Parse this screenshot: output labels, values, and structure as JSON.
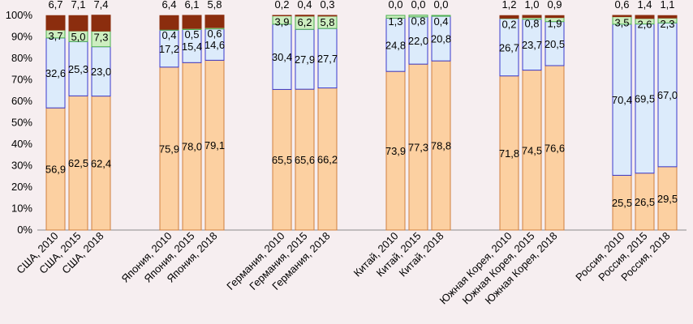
{
  "chart_data": {
    "type": "stacked-bar-100",
    "ylim": [
      0,
      100
    ],
    "yticks": [
      "0%",
      "10%",
      "20%",
      "30%",
      "40%",
      "50%",
      "60%",
      "70%",
      "80%",
      "90%",
      "100%"
    ],
    "grid": false,
    "colors": {
      "s1": "#fcd0a1",
      "s2": "#dcebfb",
      "s3": "#cdeec0",
      "s4": "#8b2d0e",
      "edge_s1": "#d08040",
      "edge_s2": "#3a3acc",
      "edge_s3": "#4caf50"
    },
    "groups": [
      {
        "name": "США",
        "bars": [
          {
            "label": "США, 2010",
            "values": [
              56.9,
              32.6,
              3.7,
              6.7
            ],
            "labels": [
              "56,9",
              "32,6",
              "3,7",
              "6,7"
            ]
          },
          {
            "label": "США, 2015",
            "values": [
              62.5,
              25.3,
              5.0,
              7.1
            ],
            "labels": [
              "62,5",
              "25,3",
              "5,0",
              "7,1"
            ]
          },
          {
            "label": "США, 2018",
            "values": [
              62.4,
              23.0,
              7.3,
              7.4
            ],
            "labels": [
              "62,4",
              "23,0",
              "7,3",
              "7,4"
            ]
          }
        ]
      },
      {
        "name": "Япония",
        "bars": [
          {
            "label": "Япония, 2010",
            "values": [
              75.9,
              17.2,
              0.4,
              6.4
            ],
            "labels": [
              "75,9",
              "17,2",
              "0,4",
              "6,4"
            ]
          },
          {
            "label": "Япония, 2015",
            "values": [
              78.0,
              15.4,
              0.5,
              6.1
            ],
            "labels": [
              "78,0",
              "15,4",
              "0,5",
              "6,1"
            ]
          },
          {
            "label": "Япония, 2018",
            "values": [
              79.1,
              14.6,
              0.6,
              5.8
            ],
            "labels": [
              "79,1",
              "14,6",
              "0,6",
              "5,8"
            ]
          }
        ]
      },
      {
        "name": "Германия",
        "bars": [
          {
            "label": "Германия, 2010",
            "values": [
              65.5,
              30.4,
              3.9,
              0.2
            ],
            "labels": [
              "65,5",
              "30,4",
              "3,9",
              "0,2"
            ]
          },
          {
            "label": "Германия, 2015",
            "values": [
              65.6,
              27.9,
              6.2,
              0.4
            ],
            "labels": [
              "65,6",
              "27,9",
              "6,2",
              "0,4"
            ]
          },
          {
            "label": "Германия, 2018",
            "values": [
              66.2,
              27.7,
              5.8,
              0.3
            ],
            "labels": [
              "66,2",
              "27,7",
              "5,8",
              "0,3"
            ]
          }
        ]
      },
      {
        "name": "Китай",
        "bars": [
          {
            "label": "Китай, 2010",
            "values": [
              73.9,
              24.8,
              1.3,
              0.0
            ],
            "labels": [
              "73,9",
              "24,8",
              "1,3",
              "0,0"
            ]
          },
          {
            "label": "Китай, 2015",
            "values": [
              77.3,
              22.0,
              0.8,
              0.0
            ],
            "labels": [
              "77,3",
              "22,0",
              "0,8",
              "0,0"
            ]
          },
          {
            "label": "Китай, 2018",
            "values": [
              78.8,
              20.8,
              0.4,
              0.0
            ],
            "labels": [
              "78,8",
              "20,8",
              "0,4",
              "0,0"
            ]
          }
        ]
      },
      {
        "name": "Южная Корея",
        "bars": [
          {
            "label": "Южная Корея, 2010",
            "values": [
              71.8,
              26.7,
              0.2,
              1.2
            ],
            "labels": [
              "71,8",
              "26,7",
              "0,2",
              "1,2"
            ]
          },
          {
            "label": "Южная Корея, 2015",
            "values": [
              74.5,
              23.7,
              0.8,
              1.0
            ],
            "labels": [
              "74,5",
              "23,7",
              "0,8",
              "1,0"
            ]
          },
          {
            "label": "Южная Корея, 2018",
            "values": [
              76.6,
              20.5,
              1.9,
              0.9
            ],
            "labels": [
              "76,6",
              "20,5",
              "1,9",
              "0,9"
            ]
          }
        ]
      },
      {
        "name": "Россия",
        "bars": [
          {
            "label": "Россия, 2010",
            "values": [
              25.5,
              70.4,
              3.5,
              0.6
            ],
            "labels": [
              "25,5",
              "70,4",
              "3,5",
              "0,6"
            ]
          },
          {
            "label": "Россия, 2015",
            "values": [
              26.5,
              69.5,
              2.6,
              1.4
            ],
            "labels": [
              "26,5",
              "69,5",
              "2,6",
              "1,4"
            ]
          },
          {
            "label": "Россия, 2018",
            "values": [
              29.5,
              67.0,
              2.3,
              1.1
            ],
            "labels": [
              "29,5",
              "67,0",
              "2,3",
              "1,1"
            ]
          }
        ]
      }
    ]
  }
}
